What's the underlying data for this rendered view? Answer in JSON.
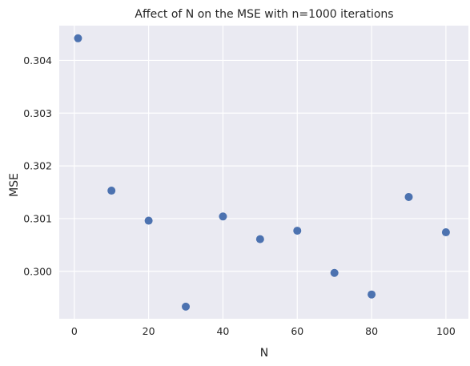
{
  "chart_data": {
    "type": "scatter",
    "title": "Affect of N on the MSE with n=1000 iterations",
    "xlabel": "N",
    "ylabel": "MSE",
    "xlim": [
      -4.05,
      106.05
    ],
    "ylim": [
      0.2991,
      0.30466
    ],
    "xticks": [
      0,
      20,
      40,
      60,
      80,
      100
    ],
    "yticks": [
      0.3,
      0.301,
      0.302,
      0.303,
      0.304
    ],
    "ytick_labels": [
      "0.300",
      "0.301",
      "0.302",
      "0.303",
      "0.304"
    ],
    "grid": true,
    "background_color": "#eaeaf2",
    "grid_color": "#ffffff",
    "marker_color": "#4c72b0",
    "series": [
      {
        "x": [
          1,
          10,
          20,
          30,
          40,
          50,
          60,
          70,
          80,
          90,
          100
        ],
        "y": [
          0.30442,
          0.30153,
          0.30096,
          0.29933,
          0.30104,
          0.30061,
          0.30077,
          0.29997,
          0.29956,
          0.30141,
          0.30074
        ]
      }
    ]
  }
}
